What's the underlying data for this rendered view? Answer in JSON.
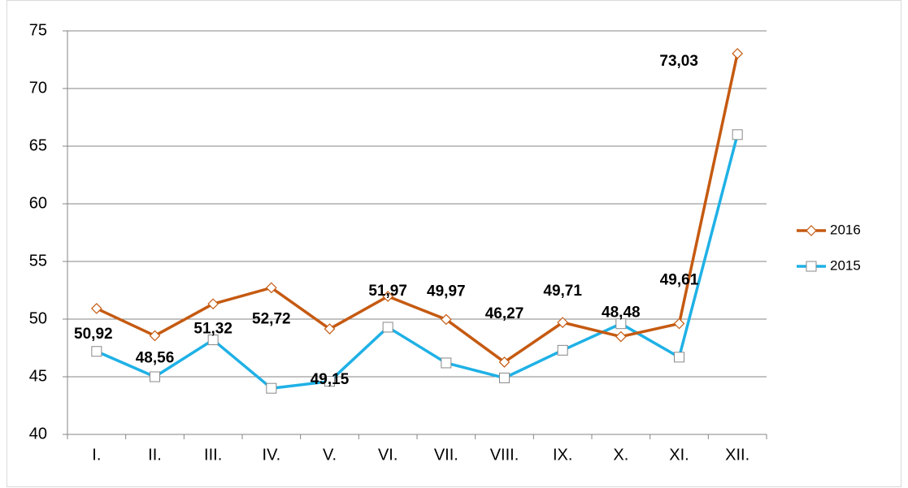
{
  "chart_data": {
    "type": "line",
    "categories": [
      "I.",
      "II.",
      "III.",
      "IV.",
      "V.",
      "VI.",
      "VII.",
      "VIII.",
      "IX.",
      "X.",
      "XI.",
      "XII."
    ],
    "series": [
      {
        "name": "2016",
        "color": "#c55a11",
        "marker": "diamond",
        "values": [
          50.92,
          48.56,
          51.32,
          52.72,
          49.15,
          51.97,
          49.97,
          46.27,
          49.71,
          48.48,
          49.61,
          73.03
        ],
        "value_labels": [
          "50,92",
          "48,56",
          "51,32",
          "52,72",
          "49,15",
          "51,97",
          "49,97",
          "46,27",
          "49,71",
          "48,48",
          "49,61",
          "73,03"
        ]
      },
      {
        "name": "2015",
        "color": "#1fb1e6",
        "marker": "square",
        "values": [
          47.2,
          45.0,
          48.2,
          44.0,
          44.6,
          49.3,
          46.2,
          44.9,
          47.3,
          49.6,
          46.7,
          66.0
        ]
      }
    ],
    "ylim": [
      40,
      75
    ],
    "yticks": [
      40,
      45,
      50,
      55,
      60,
      65,
      70,
      75
    ],
    "grid": true,
    "legend": "right"
  }
}
